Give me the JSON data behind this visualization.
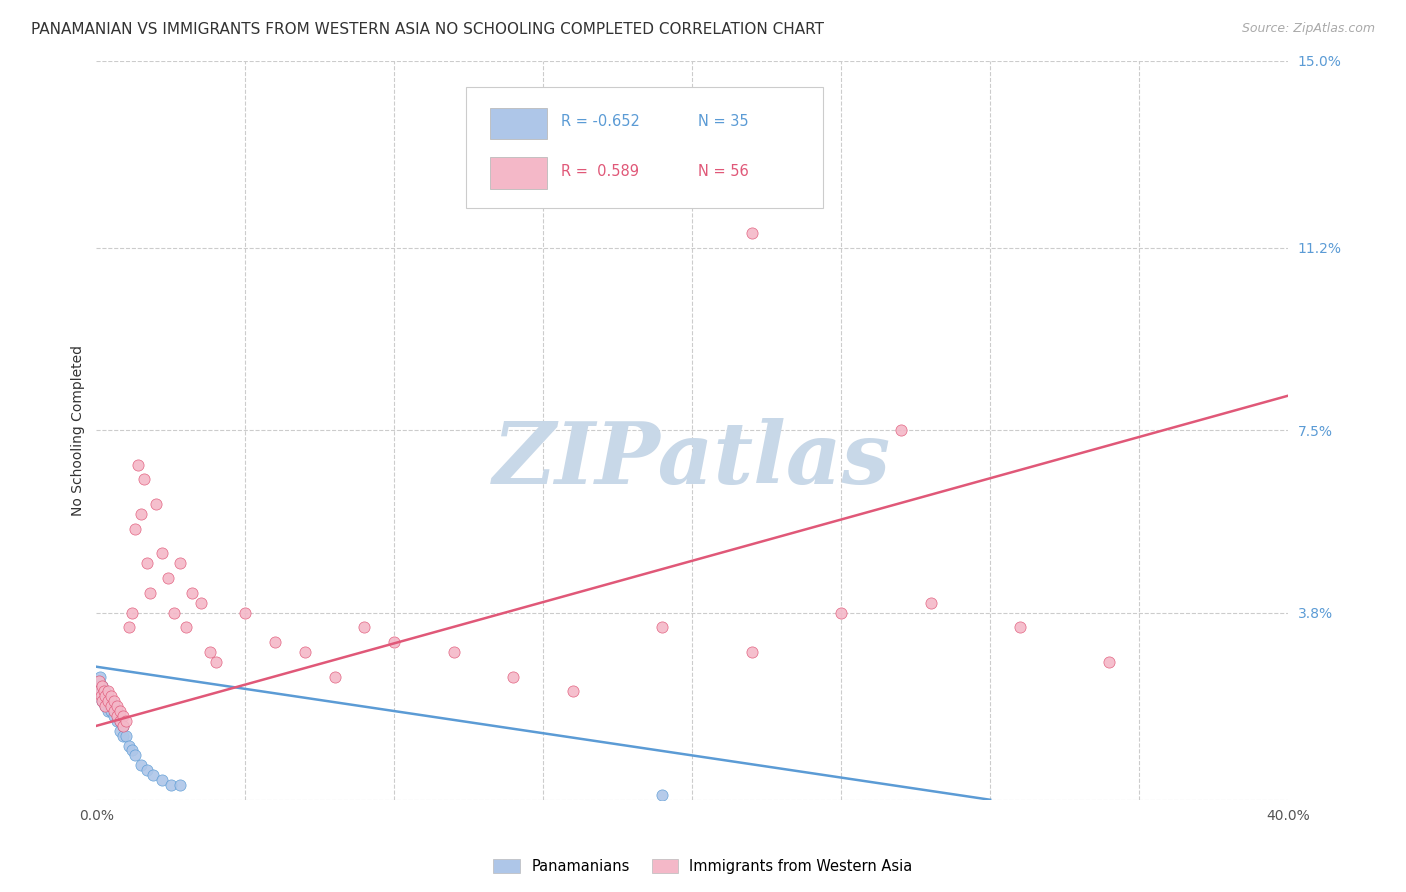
{
  "title": "PANAMANIAN VS IMMIGRANTS FROM WESTERN ASIA NO SCHOOLING COMPLETED CORRELATION CHART",
  "source": "Source: ZipAtlas.com",
  "ylabel": "No Schooling Completed",
  "xlim": [
    0.0,
    0.4
  ],
  "ylim": [
    0.0,
    0.15
  ],
  "xticks": [
    0.0,
    0.05,
    0.1,
    0.15,
    0.2,
    0.25,
    0.3,
    0.35,
    0.4
  ],
  "xticklabels": [
    "0.0%",
    "",
    "",
    "",
    "",
    "",
    "",
    "",
    "40.0%"
  ],
  "ytick_positions": [
    0.0,
    0.038,
    0.075,
    0.112,
    0.15
  ],
  "ytick_labels": [
    "",
    "3.8%",
    "7.5%",
    "11.2%",
    "15.0%"
  ],
  "grid_color": "#cccccc",
  "background_color": "#ffffff",
  "watermark_text": "ZIPatlas",
  "title_fontsize": 11,
  "axis_label_fontsize": 10,
  "tick_fontsize": 10,
  "source_fontsize": 9,
  "watermark_color": "#c8d8e8",
  "watermark_fontsize": 62,
  "blue_scatter_x": [
    0.0008,
    0.001,
    0.0012,
    0.0015,
    0.0018,
    0.002,
    0.002,
    0.0025,
    0.003,
    0.003,
    0.0035,
    0.004,
    0.004,
    0.0045,
    0.005,
    0.005,
    0.006,
    0.006,
    0.007,
    0.007,
    0.008,
    0.008,
    0.009,
    0.009,
    0.01,
    0.011,
    0.012,
    0.013,
    0.015,
    0.017,
    0.019,
    0.022,
    0.025,
    0.028,
    0.19
  ],
  "blue_scatter_y": [
    0.024,
    0.022,
    0.025,
    0.023,
    0.021,
    0.023,
    0.02,
    0.021,
    0.022,
    0.019,
    0.021,
    0.02,
    0.018,
    0.019,
    0.02,
    0.018,
    0.019,
    0.017,
    0.018,
    0.016,
    0.016,
    0.014,
    0.015,
    0.013,
    0.013,
    0.011,
    0.01,
    0.009,
    0.007,
    0.006,
    0.005,
    0.004,
    0.003,
    0.003,
    0.001
  ],
  "blue_line_x": [
    0.0,
    0.3
  ],
  "blue_line_y": [
    0.027,
    0.0
  ],
  "pink_scatter_x": [
    0.0008,
    0.001,
    0.0015,
    0.002,
    0.002,
    0.0025,
    0.003,
    0.003,
    0.004,
    0.004,
    0.005,
    0.005,
    0.006,
    0.006,
    0.007,
    0.007,
    0.008,
    0.008,
    0.009,
    0.009,
    0.01,
    0.011,
    0.012,
    0.013,
    0.014,
    0.015,
    0.016,
    0.017,
    0.018,
    0.02,
    0.022,
    0.024,
    0.026,
    0.028,
    0.03,
    0.032,
    0.035,
    0.038,
    0.04,
    0.05,
    0.06,
    0.07,
    0.08,
    0.09,
    0.1,
    0.12,
    0.14,
    0.16,
    0.19,
    0.22,
    0.25,
    0.28,
    0.31,
    0.34,
    0.22,
    0.27
  ],
  "pink_scatter_y": [
    0.022,
    0.024,
    0.021,
    0.023,
    0.02,
    0.022,
    0.019,
    0.021,
    0.02,
    0.022,
    0.019,
    0.021,
    0.018,
    0.02,
    0.017,
    0.019,
    0.016,
    0.018,
    0.017,
    0.015,
    0.016,
    0.035,
    0.038,
    0.055,
    0.068,
    0.058,
    0.065,
    0.048,
    0.042,
    0.06,
    0.05,
    0.045,
    0.038,
    0.048,
    0.035,
    0.042,
    0.04,
    0.03,
    0.028,
    0.038,
    0.032,
    0.03,
    0.025,
    0.035,
    0.032,
    0.03,
    0.025,
    0.022,
    0.035,
    0.03,
    0.038,
    0.04,
    0.035,
    0.028,
    0.115,
    0.075
  ],
  "pink_line_x": [
    0.0,
    0.4
  ],
  "pink_line_y": [
    0.015,
    0.082
  ],
  "blue_color": "#aec6e8",
  "blue_edge": "#5b9bd5",
  "pink_color": "#f4b8c8",
  "pink_edge": "#e05878",
  "legend_r1": "R = -0.652",
  "legend_n1": "N = 35",
  "legend_r2": "R =  0.589",
  "legend_n2": "N = 56",
  "legend_r1_color": "#5b9bd5",
  "legend_r2_color": "#e05878",
  "legend_bottom": [
    {
      "label": "Panamanians",
      "color": "#aec6e8"
    },
    {
      "label": "Immigrants from Western Asia",
      "color": "#f4b8c8"
    }
  ]
}
